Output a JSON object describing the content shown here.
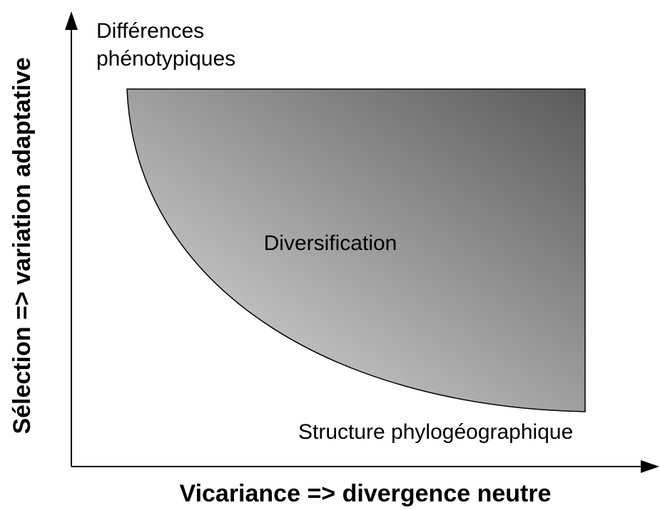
{
  "axes": {
    "x_label": "Vicariance => divergence neutre",
    "y_label": "Sélection => variation adaptative"
  },
  "labels": {
    "top_left": [
      "Différences",
      "phénotypiques"
    ],
    "center": "Diversification",
    "bottom_right": "Structure phylogéographique"
  }
}
